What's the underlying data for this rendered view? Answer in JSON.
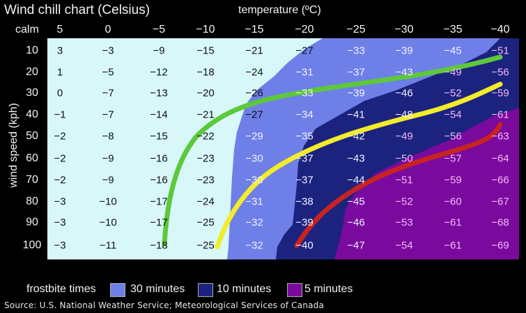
{
  "title": "Wind chill chart (Celsius)",
  "xlabel": "temperature (ºC)",
  "ylabel": "wind speed (kph)",
  "calm_label": "calm",
  "columns": [
    "5",
    "0",
    "−5",
    "−10",
    "−15",
    "−20",
    "−25",
    "−30",
    "−35",
    "−40"
  ],
  "rows": [
    "10",
    "20",
    "30",
    "40",
    "50",
    "60",
    "70",
    "80",
    "90",
    "100"
  ],
  "legend": {
    "title": "frostbite times",
    "items": [
      {
        "label": "30 minutes",
        "color": "#6f7fe8"
      },
      {
        "label": "10 minutes",
        "color": "#1c237f"
      },
      {
        "label": "5 minutes",
        "color": "#7a0a9e"
      }
    ]
  },
  "source": "Source:  U.S. National Weather Service; Meteorological Services of Canada",
  "colors": {
    "background": "#000000",
    "safe_zone": "#d8f7f9",
    "zone_30min": "#6f7fe8",
    "zone_10min": "#1c237f",
    "zone_5min": "#7a0a9e",
    "curve_green": "#5cc93a",
    "curve_yellow": "#f2ec2a",
    "curve_red": "#c8231f"
  },
  "chart_data": {
    "type": "table",
    "title": "Wind chill chart (Celsius)",
    "xlabel": "temperature (ºC)",
    "ylabel": "wind speed (kph)",
    "x": [
      5,
      0,
      -5,
      -10,
      -15,
      -20,
      -25,
      -30,
      -35,
      -40
    ],
    "y": [
      10,
      20,
      30,
      40,
      50,
      60,
      70,
      80,
      90,
      100
    ],
    "values": [
      [
        3,
        -3,
        -9,
        -15,
        -21,
        -27,
        -33,
        -39,
        -45,
        -51
      ],
      [
        1,
        -5,
        -12,
        -18,
        -24,
        -31,
        -37,
        -43,
        -49,
        -56
      ],
      [
        0,
        -7,
        -13,
        -20,
        -26,
        -33,
        -39,
        -46,
        -52,
        -59
      ],
      [
        -1,
        -7,
        -14,
        -21,
        -27,
        -34,
        -41,
        -48,
        -54,
        -61
      ],
      [
        -2,
        -8,
        -15,
        -22,
        -29,
        -35,
        -42,
        -49,
        -56,
        -63
      ],
      [
        -2,
        -9,
        -16,
        -23,
        -30,
        -37,
        -43,
        -50,
        -57,
        -64
      ],
      [
        -2,
        -9,
        -16,
        -23,
        -30,
        -37,
        -44,
        -51,
        -59,
        -66
      ],
      [
        -3,
        -10,
        -17,
        -24,
        -31,
        -38,
        -45,
        -52,
        -60,
        -67
      ],
      [
        -3,
        -10,
        -17,
        -25,
        -32,
        -39,
        -46,
        -53,
        -61,
        -68
      ],
      [
        -3,
        -11,
        -18,
        -25,
        -32,
        -40,
        -47,
        -54,
        -61,
        -69
      ]
    ],
    "zones": [
      {
        "label": "30 minutes",
        "color": "#6f7fe8"
      },
      {
        "label": "10 minutes",
        "color": "#1c237f"
      },
      {
        "label": "5 minutes",
        "color": "#7a0a9e"
      }
    ],
    "legend_title": "frostbite times",
    "legend_position": "bottom",
    "annotations": [
      "green curve",
      "yellow curve",
      "red curve"
    ]
  }
}
